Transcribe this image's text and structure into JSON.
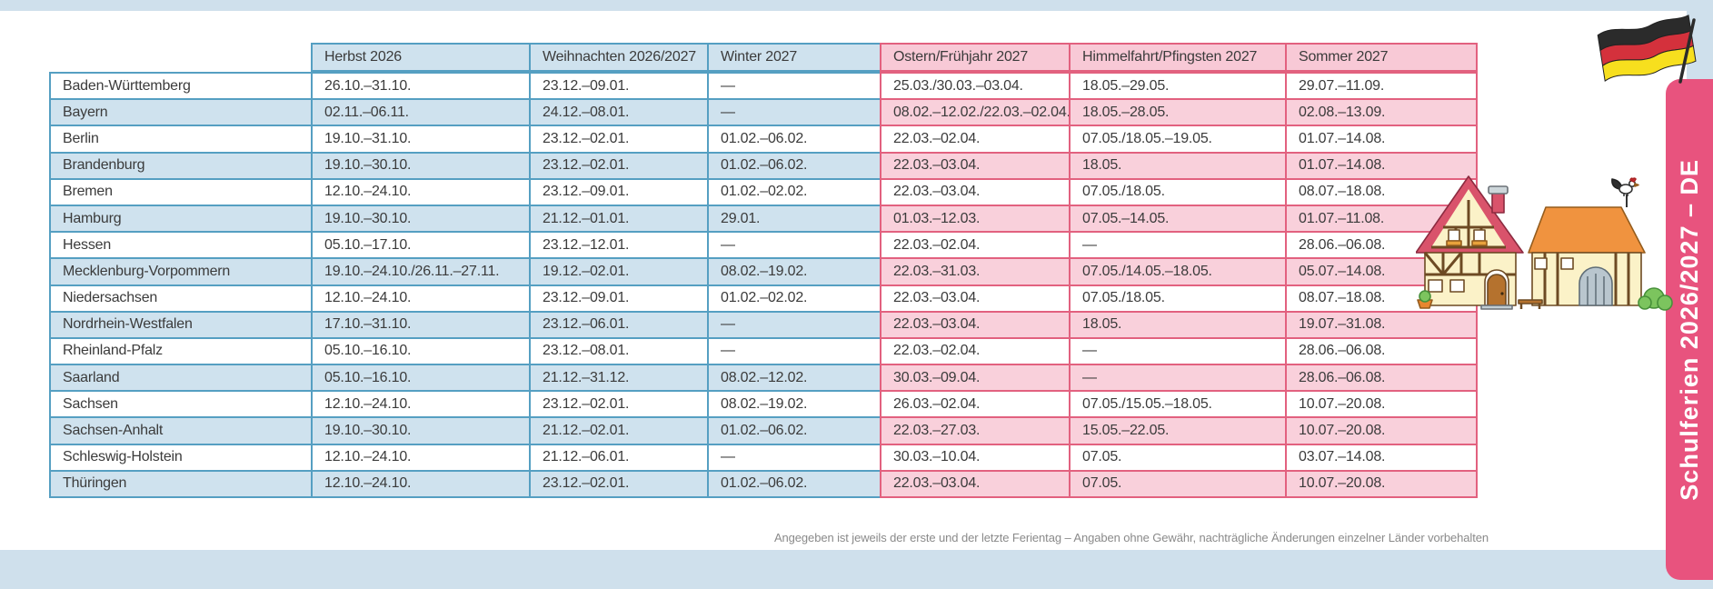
{
  "side_tab": {
    "label": "Schulferien 2026/2027 – DE"
  },
  "footnote": "Angegeben ist jeweils der erste und der letzte Ferientag – Angaben ohne Gewähr, nachträgliche Änderungen einzelner Länder vorbehalten",
  "table": {
    "column_headers": [
      "Herbst 2026",
      "Weihnachten 2026/2027",
      "Winter 2027",
      "Ostern/Frühjahr 2027",
      "Himmelfahrt/Pfingsten 2027",
      "Sommer 2027"
    ],
    "rows": [
      {
        "state": "Baden-Württemberg",
        "values": [
          "26.10.–31.10.",
          "23.12.–09.01.",
          "—",
          "25.03./30.03.–03.04.",
          "18.05.–29.05.",
          "29.07.–11.09."
        ]
      },
      {
        "state": "Bayern",
        "values": [
          "02.11.–06.11.",
          "24.12.–08.01.",
          "—",
          "08.02.–12.02./22.03.–02.04.",
          "18.05.–28.05.",
          "02.08.–13.09."
        ]
      },
      {
        "state": "Berlin",
        "values": [
          "19.10.–31.10.",
          "23.12.–02.01.",
          "01.02.–06.02.",
          "22.03.–02.04.",
          "07.05./18.05.–19.05.",
          "01.07.–14.08."
        ]
      },
      {
        "state": "Brandenburg",
        "values": [
          "19.10.–30.10.",
          "23.12.–02.01.",
          "01.02.–06.02.",
          "22.03.–03.04.",
          "18.05.",
          "01.07.–14.08."
        ]
      },
      {
        "state": "Bremen",
        "values": [
          "12.10.–24.10.",
          "23.12.–09.01.",
          "01.02.–02.02.",
          "22.03.–03.04.",
          "07.05./18.05.",
          "08.07.–18.08."
        ]
      },
      {
        "state": "Hamburg",
        "values": [
          "19.10.–30.10.",
          "21.12.–01.01.",
          "29.01.",
          "01.03.–12.03.",
          "07.05.–14.05.",
          "01.07.–11.08."
        ]
      },
      {
        "state": "Hessen",
        "values": [
          "05.10.–17.10.",
          "23.12.–12.01.",
          "—",
          "22.03.–02.04.",
          "—",
          "28.06.–06.08."
        ]
      },
      {
        "state": "Mecklenburg-Vorpommern",
        "values": [
          "19.10.–24.10./26.11.–27.11.",
          "19.12.–02.01.",
          "08.02.–19.02.",
          "22.03.–31.03.",
          "07.05./14.05.–18.05.",
          "05.07.–14.08."
        ]
      },
      {
        "state": "Niedersachsen",
        "values": [
          "12.10.–24.10.",
          "23.12.–09.01.",
          "01.02.–02.02.",
          "22.03.–03.04.",
          "07.05./18.05.",
          "08.07.–18.08."
        ]
      },
      {
        "state": "Nordrhein-Westfalen",
        "values": [
          "17.10.–31.10.",
          "23.12.–06.01.",
          "—",
          "22.03.–03.04.",
          "18.05.",
          "19.07.–31.08."
        ]
      },
      {
        "state": "Rheinland-Pfalz",
        "values": [
          "05.10.–16.10.",
          "23.12.–08.01.",
          "—",
          "22.03.–02.04.",
          "—",
          "28.06.–06.08."
        ]
      },
      {
        "state": "Saarland",
        "values": [
          "05.10.–16.10.",
          "21.12.–31.12.",
          "08.02.–12.02.",
          "30.03.–09.04.",
          "—",
          "28.06.–06.08."
        ]
      },
      {
        "state": "Sachsen",
        "values": [
          "12.10.–24.10.",
          "23.12.–02.01.",
          "08.02.–19.02.",
          "26.03.–02.04.",
          "07.05./15.05.–18.05.",
          "10.07.–20.08."
        ]
      },
      {
        "state": "Sachsen-Anhalt",
        "values": [
          "19.10.–30.10.",
          "21.12.–02.01.",
          "01.02.–06.02.",
          "22.03.–27.03.",
          "15.05.–22.05.",
          "10.07.–20.08."
        ]
      },
      {
        "state": "Schleswig-Holstein",
        "values": [
          "12.10.–24.10.",
          "21.12.–06.01.",
          "—",
          "30.03.–10.04.",
          "07.05.",
          "03.07.–14.08."
        ]
      },
      {
        "state": "Thüringen",
        "values": [
          "12.10.–24.10.",
          "23.12.–02.01.",
          "01.02.–06.02.",
          "22.03.–03.04.",
          "07.05.",
          "10.07.–20.08."
        ]
      }
    ]
  },
  "icons": {
    "flag": "german-flag",
    "illustration": "farmhouse-with-barn-and-rooster"
  },
  "colors": {
    "blue_border": "#559fc2",
    "blue_fill": "#cfe2ee",
    "pink_border": "#e2617f",
    "pink_fill": "#f9d0db",
    "pink_header_fill": "#f8c9d6",
    "tab_pink": "#e8537e",
    "page_band_blue": "#cfe0ec",
    "flag_black": "#2b2b2b",
    "flag_red": "#d4313c",
    "flag_gold": "#f7df1e"
  }
}
